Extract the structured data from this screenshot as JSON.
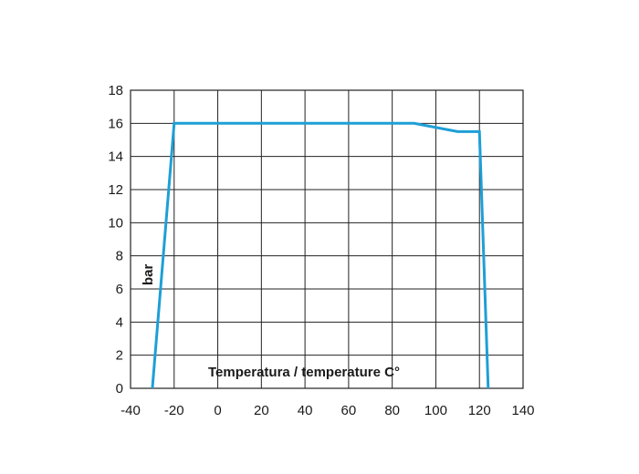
{
  "chart_data": {
    "type": "line",
    "title": "",
    "xlabel": "Temperatura / temperature C°",
    "ylabel": "bar",
    "xlim": [
      -40,
      140
    ],
    "ylim": [
      0,
      18
    ],
    "x_ticks": [
      "-40",
      "-20",
      "0",
      "20",
      "40",
      "60",
      "80",
      "100",
      "120",
      "140"
    ],
    "y_ticks": [
      "0",
      "2",
      "4",
      "6",
      "8",
      "10",
      "12",
      "14",
      "16",
      "18"
    ],
    "grid": true,
    "legend": "none",
    "series": [
      {
        "x": [
          -30,
          -20,
          90,
          110,
          120,
          124
        ],
        "y": [
          0,
          16,
          16,
          15.5,
          15.5,
          0
        ],
        "color": "#1e9fd6"
      }
    ],
    "colors": {
      "grid": "#222222",
      "frame": "#222222",
      "line": "#1e9fd6",
      "text": "#1a1a1a"
    }
  }
}
